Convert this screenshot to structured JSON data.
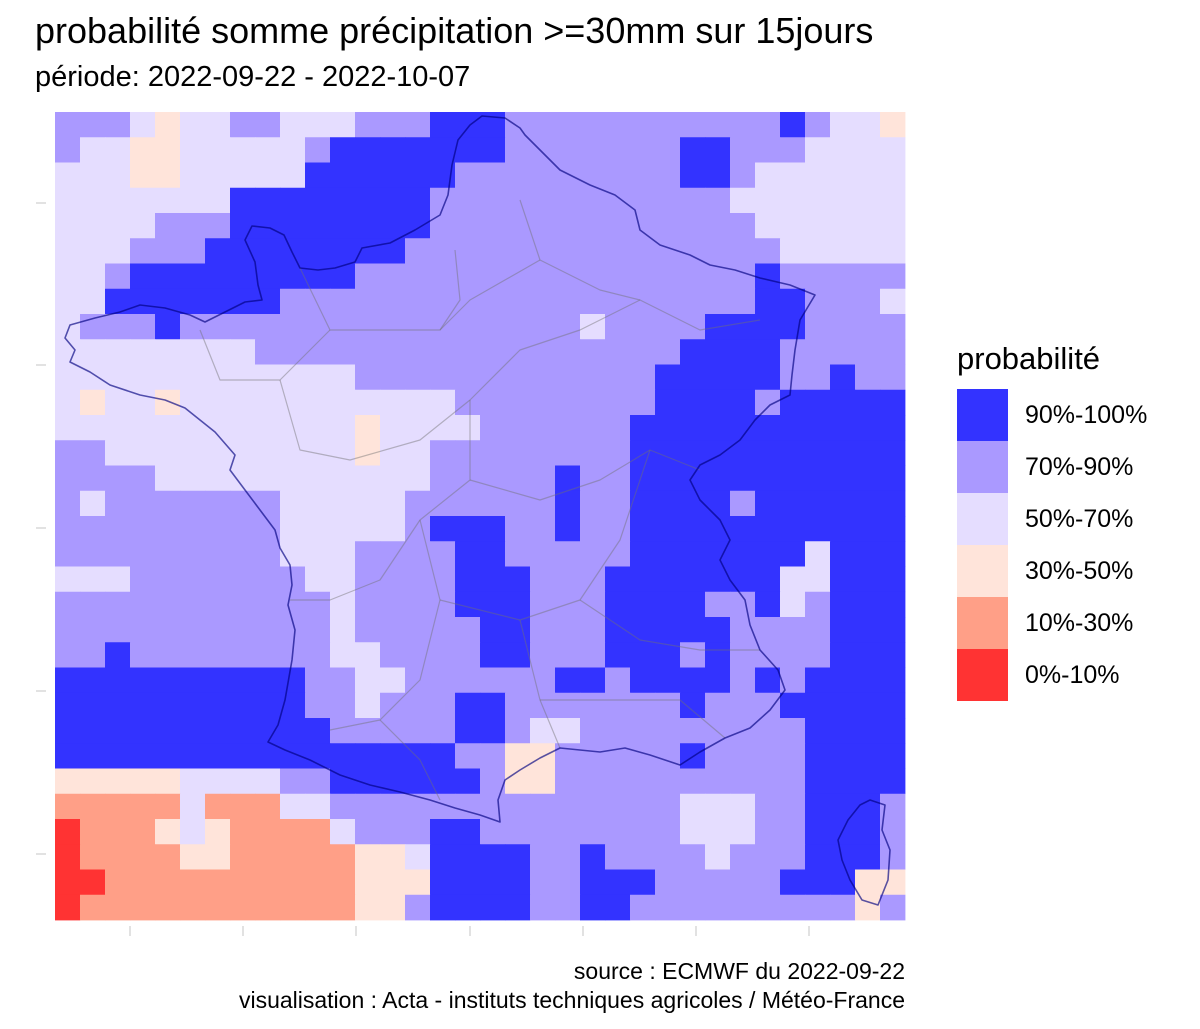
{
  "title": "probabilité somme précipitation >=30mm sur 15jours",
  "subtitle": "période: 2022-09-22 - 2022-10-07",
  "legend": {
    "title": "probabilité",
    "items": [
      {
        "label": "90%-100%",
        "color": "#3333FF"
      },
      {
        "label": "70%-90%",
        "color": "#AA99FF"
      },
      {
        "label": "50%-70%",
        "color": "#E5DDFF"
      },
      {
        "label": "30%-50%",
        "color": "#FFE4DA"
      },
      {
        "label": "10%-30%",
        "color": "#FF9F87"
      },
      {
        "label": "0%-10%",
        "color": "#FF3333"
      }
    ]
  },
  "caption": {
    "line1": "source : ECMWF du 2022-09-22",
    "line2": "visualisation : Acta - instituts techniques agricoles / Météo-France"
  },
  "map": {
    "grid": [
      [
        1,
        1,
        1,
        2,
        3,
        2,
        2,
        1,
        1,
        2,
        2,
        2,
        1,
        1,
        1,
        0,
        0,
        0,
        1,
        1,
        1,
        1,
        1,
        1,
        1,
        1,
        1,
        1,
        1,
        0,
        1,
        2,
        2,
        3
      ],
      [
        1,
        2,
        2,
        3,
        3,
        2,
        2,
        2,
        2,
        2,
        1,
        0,
        0,
        0,
        0,
        0,
        0,
        0,
        1,
        1,
        1,
        1,
        1,
        1,
        1,
        0,
        0,
        1,
        1,
        1,
        2,
        2,
        2,
        2
      ],
      [
        2,
        2,
        2,
        3,
        3,
        2,
        2,
        2,
        2,
        2,
        0,
        0,
        0,
        0,
        0,
        0,
        1,
        1,
        1,
        1,
        1,
        1,
        1,
        1,
        1,
        0,
        0,
        1,
        2,
        2,
        2,
        2,
        2,
        2
      ],
      [
        2,
        2,
        2,
        2,
        2,
        2,
        2,
        0,
        0,
        0,
        0,
        0,
        0,
        0,
        0,
        1,
        1,
        1,
        1,
        1,
        1,
        1,
        1,
        1,
        1,
        1,
        1,
        2,
        2,
        2,
        2,
        2,
        2,
        2
      ],
      [
        2,
        2,
        2,
        2,
        1,
        1,
        1,
        0,
        0,
        0,
        0,
        0,
        0,
        0,
        0,
        1,
        1,
        1,
        1,
        1,
        1,
        1,
        1,
        1,
        1,
        1,
        1,
        1,
        2,
        2,
        2,
        2,
        2,
        2
      ],
      [
        2,
        2,
        2,
        1,
        1,
        1,
        0,
        0,
        0,
        0,
        0,
        0,
        0,
        0,
        1,
        1,
        1,
        1,
        1,
        1,
        1,
        1,
        1,
        1,
        1,
        1,
        1,
        1,
        1,
        2,
        2,
        2,
        2,
        2
      ],
      [
        2,
        2,
        1,
        0,
        0,
        0,
        0,
        0,
        0,
        0,
        0,
        0,
        1,
        1,
        1,
        1,
        1,
        1,
        1,
        1,
        1,
        1,
        1,
        1,
        1,
        1,
        1,
        1,
        0,
        1,
        1,
        1,
        1,
        1
      ],
      [
        2,
        2,
        0,
        0,
        0,
        0,
        0,
        0,
        0,
        1,
        1,
        1,
        1,
        1,
        1,
        1,
        1,
        1,
        1,
        1,
        1,
        1,
        1,
        1,
        1,
        1,
        1,
        1,
        0,
        0,
        1,
        1,
        1,
        2
      ],
      [
        2,
        1,
        1,
        1,
        0,
        1,
        1,
        1,
        1,
        1,
        1,
        1,
        1,
        1,
        1,
        1,
        1,
        1,
        1,
        1,
        1,
        2,
        1,
        1,
        1,
        1,
        0,
        0,
        0,
        0,
        1,
        1,
        1,
        1
      ],
      [
        2,
        2,
        2,
        2,
        2,
        2,
        2,
        2,
        1,
        1,
        1,
        1,
        1,
        1,
        1,
        1,
        1,
        1,
        1,
        1,
        1,
        1,
        1,
        1,
        1,
        0,
        0,
        0,
        0,
        1,
        1,
        1,
        1,
        1
      ],
      [
        2,
        2,
        2,
        2,
        2,
        2,
        2,
        2,
        2,
        2,
        2,
        2,
        1,
        1,
        1,
        1,
        1,
        1,
        1,
        1,
        1,
        1,
        1,
        1,
        0,
        0,
        0,
        0,
        0,
        1,
        1,
        0,
        1,
        1
      ],
      [
        2,
        3,
        2,
        2,
        3,
        2,
        2,
        2,
        2,
        2,
        2,
        2,
        2,
        2,
        2,
        2,
        1,
        1,
        1,
        1,
        1,
        1,
        1,
        1,
        0,
        0,
        0,
        0,
        1,
        0,
        0,
        0,
        0,
        0
      ],
      [
        2,
        2,
        2,
        2,
        2,
        2,
        2,
        2,
        2,
        2,
        2,
        2,
        3,
        2,
        2,
        2,
        2,
        1,
        1,
        1,
        1,
        1,
        1,
        0,
        0,
        0,
        0,
        0,
        0,
        0,
        0,
        0,
        0,
        0
      ],
      [
        1,
        1,
        2,
        2,
        2,
        2,
        2,
        2,
        2,
        2,
        2,
        2,
        3,
        2,
        2,
        1,
        1,
        1,
        1,
        1,
        1,
        1,
        1,
        0,
        0,
        0,
        0,
        0,
        0,
        0,
        0,
        0,
        0,
        0
      ],
      [
        1,
        1,
        1,
        1,
        2,
        2,
        2,
        2,
        2,
        2,
        2,
        2,
        2,
        2,
        2,
        1,
        1,
        1,
        1,
        1,
        0,
        1,
        1,
        0,
        0,
        0,
        0,
        0,
        0,
        0,
        0,
        0,
        0,
        0
      ],
      [
        1,
        2,
        1,
        1,
        1,
        1,
        1,
        1,
        1,
        2,
        2,
        2,
        2,
        2,
        1,
        1,
        1,
        1,
        1,
        1,
        0,
        1,
        1,
        0,
        0,
        0,
        0,
        1,
        0,
        0,
        0,
        0,
        0,
        0
      ],
      [
        1,
        1,
        1,
        1,
        1,
        1,
        1,
        1,
        1,
        2,
        2,
        2,
        2,
        2,
        1,
        0,
        0,
        0,
        1,
        1,
        0,
        1,
        1,
        0,
        0,
        0,
        0,
        0,
        0,
        0,
        0,
        0,
        0,
        0
      ],
      [
        1,
        1,
        1,
        1,
        1,
        1,
        1,
        1,
        1,
        2,
        2,
        2,
        1,
        1,
        1,
        1,
        0,
        0,
        1,
        1,
        1,
        1,
        1,
        0,
        0,
        0,
        0,
        0,
        0,
        0,
        2,
        0,
        0,
        0
      ],
      [
        2,
        2,
        2,
        1,
        1,
        1,
        1,
        1,
        1,
        1,
        2,
        2,
        1,
        1,
        1,
        1,
        0,
        0,
        0,
        1,
        1,
        1,
        0,
        0,
        0,
        0,
        0,
        0,
        0,
        2,
        2,
        0,
        0,
        0
      ],
      [
        1,
        1,
        1,
        1,
        1,
        1,
        1,
        1,
        1,
        1,
        1,
        2,
        1,
        1,
        1,
        1,
        0,
        0,
        0,
        1,
        1,
        1,
        0,
        0,
        0,
        0,
        1,
        1,
        0,
        2,
        1,
        0,
        0,
        0
      ],
      [
        1,
        1,
        1,
        1,
        1,
        1,
        1,
        1,
        1,
        1,
        1,
        2,
        1,
        1,
        1,
        1,
        1,
        0,
        0,
        1,
        1,
        1,
        0,
        0,
        0,
        0,
        0,
        1,
        1,
        1,
        1,
        0,
        0,
        0
      ],
      [
        1,
        1,
        0,
        1,
        1,
        1,
        1,
        1,
        1,
        1,
        1,
        2,
        2,
        1,
        1,
        1,
        1,
        0,
        0,
        1,
        1,
        1,
        0,
        0,
        0,
        1,
        0,
        1,
        1,
        1,
        1,
        0,
        0,
        0
      ],
      [
        0,
        0,
        0,
        0,
        0,
        0,
        0,
        0,
        0,
        0,
        1,
        1,
        2,
        2,
        1,
        1,
        1,
        1,
        1,
        1,
        0,
        0,
        1,
        0,
        0,
        0,
        0,
        1,
        0,
        1,
        0,
        0,
        0,
        0
      ],
      [
        0,
        0,
        0,
        0,
        0,
        0,
        0,
        0,
        0,
        0,
        1,
        1,
        2,
        1,
        1,
        1,
        0,
        0,
        1,
        1,
        1,
        1,
        1,
        1,
        1,
        0,
        1,
        1,
        1,
        0,
        0,
        0,
        0,
        0
      ],
      [
        0,
        0,
        0,
        0,
        0,
        0,
        0,
        0,
        0,
        0,
        0,
        1,
        1,
        1,
        1,
        1,
        0,
        0,
        1,
        2,
        2,
        1,
        1,
        1,
        1,
        1,
        1,
        1,
        1,
        1,
        0,
        0,
        0,
        0
      ],
      [
        0,
        0,
        0,
        0,
        0,
        0,
        0,
        0,
        0,
        0,
        0,
        0,
        0,
        0,
        0,
        0,
        1,
        1,
        3,
        3,
        1,
        1,
        1,
        1,
        1,
        0,
        1,
        1,
        1,
        1,
        0,
        0,
        0,
        0
      ],
      [
        3,
        3,
        3,
        3,
        3,
        2,
        2,
        2,
        2,
        1,
        1,
        0,
        0,
        0,
        0,
        0,
        0,
        1,
        3,
        3,
        1,
        1,
        1,
        1,
        1,
        1,
        1,
        1,
        1,
        1,
        0,
        0,
        0,
        0
      ],
      [
        4,
        4,
        4,
        4,
        4,
        2,
        4,
        4,
        4,
        2,
        2,
        1,
        1,
        1,
        1,
        1,
        1,
        1,
        1,
        1,
        1,
        1,
        1,
        1,
        1,
        2,
        2,
        2,
        1,
        1,
        0,
        0,
        0,
        1
      ],
      [
        5,
        4,
        4,
        4,
        3,
        2,
        3,
        4,
        4,
        4,
        4,
        2,
        1,
        1,
        1,
        0,
        0,
        1,
        1,
        1,
        1,
        1,
        1,
        1,
        1,
        2,
        2,
        2,
        1,
        1,
        0,
        0,
        0,
        1
      ],
      [
        5,
        4,
        4,
        4,
        4,
        3,
        3,
        4,
        4,
        4,
        4,
        4,
        3,
        3,
        2,
        0,
        0,
        0,
        0,
        1,
        1,
        0,
        1,
        1,
        1,
        1,
        2,
        1,
        1,
        1,
        0,
        0,
        0,
        1
      ],
      [
        5,
        5,
        4,
        4,
        4,
        4,
        4,
        4,
        4,
        4,
        4,
        4,
        3,
        3,
        3,
        0,
        0,
        0,
        0,
        1,
        1,
        0,
        0,
        0,
        1,
        1,
        1,
        1,
        1,
        0,
        0,
        0,
        3,
        3
      ],
      [
        5,
        4,
        4,
        4,
        4,
        4,
        4,
        4,
        4,
        4,
        4,
        4,
        3,
        3,
        1,
        0,
        0,
        0,
        0,
        1,
        1,
        0,
        0,
        1,
        1,
        1,
        1,
        1,
        1,
        1,
        1,
        1,
        3,
        1
      ]
    ]
  }
}
